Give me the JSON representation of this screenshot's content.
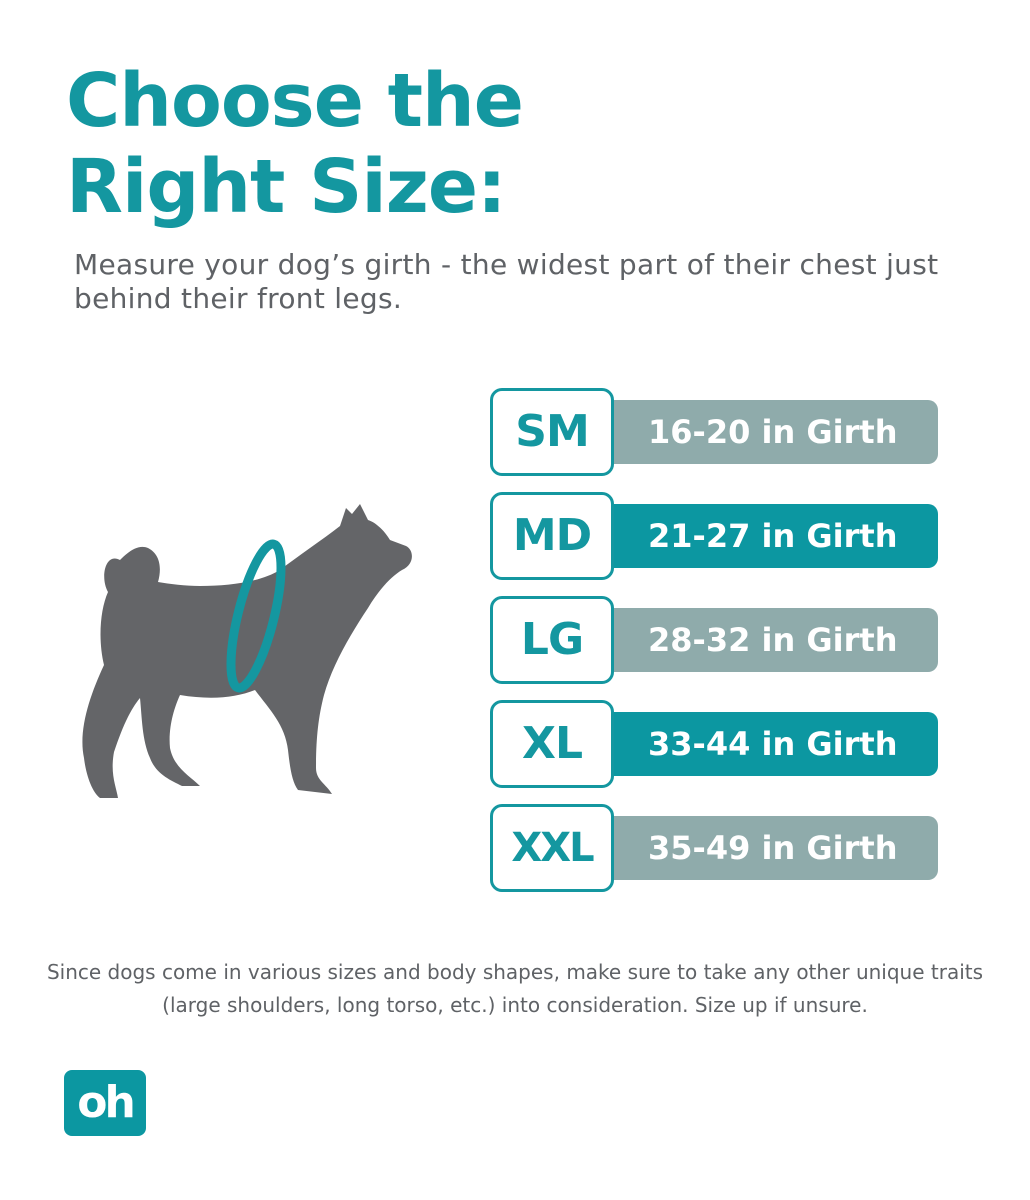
{
  "title": {
    "line1": "Choose the",
    "line2": "Right Size:"
  },
  "subtitle": "Measure your dog’s girth - the widest part of their chest just behind their front legs.",
  "colors": {
    "brand_teal": "#1497a0",
    "bar_teal": "#0c97a1",
    "bar_grey": "#8fabab",
    "dog_grey": "#646568",
    "text_grey": "#5f6266"
  },
  "sizes": [
    {
      "code": "SM",
      "girth": "16-20 in Girth",
      "bar_color": "grey"
    },
    {
      "code": "MD",
      "girth": "21-27 in Girth",
      "bar_color": "teal"
    },
    {
      "code": "LG",
      "girth": "28-32 in Girth",
      "bar_color": "grey"
    },
    {
      "code": "XL",
      "girth": "33-44 in Girth",
      "bar_color": "teal"
    },
    {
      "code": "XXL",
      "girth": "35-49 in Girth",
      "bar_color": "grey"
    }
  ],
  "footnote": "Since dogs come in various sizes and body shapes, make sure to take any other unique traits (large shoulders, long torso, etc.) into consideration. Size up if unsure.",
  "logo": {
    "text": "oh",
    "icon": "brand-logo-icon"
  },
  "illustration": {
    "icon": "dog-silhouette-icon",
    "accent_icon": "girth-measure-ring-icon"
  }
}
